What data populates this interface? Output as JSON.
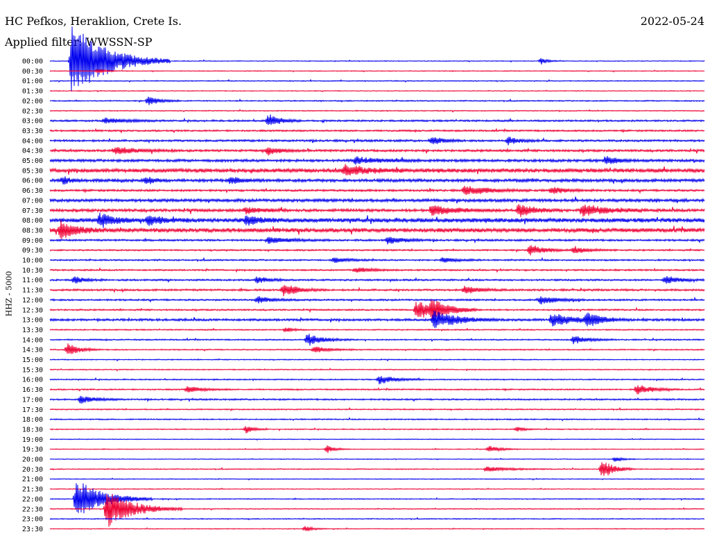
{
  "header": {
    "station": "HC Pefkos, Heraklion, Crete Is.",
    "filter": "Applied filter: WWSSN-SP",
    "date": "2022-05-24",
    "channel": "HHZ - 5000"
  },
  "chart_data": {
    "type": "helicorder",
    "title": "HC Pefkos, Heraklion, Crete Is.",
    "subtitle": "Applied filter: WWSSN-SP",
    "date": "2022-05-24",
    "ylabel": "HHZ - 5000",
    "trace_colors": [
      "#0000ee",
      "#ee0033"
    ],
    "row_labels": [
      "00:00",
      "00:30",
      "01:00",
      "01:30",
      "02:00",
      "02:30",
      "03:00",
      "03:30",
      "04:00",
      "04:30",
      "05:00",
      "05:30",
      "06:00",
      "06:30",
      "07:00",
      "07:30",
      "08:00",
      "08:30",
      "09:00",
      "09:30",
      "10:00",
      "10:30",
      "11:00",
      "11:30",
      "12:00",
      "12:30",
      "13:00",
      "13:30",
      "14:00",
      "14:30",
      "15:00",
      "15:30",
      "16:00",
      "16:30",
      "17:00",
      "17:30",
      "18:00",
      "18:30",
      "19:00",
      "19:30",
      "20:00",
      "20:30",
      "21:00",
      "21:30",
      "22:00",
      "22:30",
      "23:00",
      "23:30"
    ],
    "row_noise": [
      0.4,
      0.4,
      0.5,
      0.4,
      0.6,
      0.5,
      0.9,
      0.9,
      1.1,
      1.2,
      1.4,
      2.0,
      1.6,
      1.1,
      1.6,
      1.5,
      2.2,
      2.2,
      1.0,
      0.8,
      0.8,
      0.8,
      0.9,
      1.0,
      0.9,
      0.8,
      1.2,
      0.6,
      0.7,
      0.6,
      0.5,
      0.5,
      0.6,
      0.7,
      0.8,
      0.6,
      0.6,
      0.5,
      0.4,
      0.4,
      0.4,
      0.5,
      0.4,
      0.4,
      0.5,
      0.5,
      0.5,
      0.4
    ],
    "events": [
      {
        "row": 0,
        "minute": 22.5,
        "amp": 4,
        "dur": 1.0
      },
      {
        "row": 0,
        "minute": 1,
        "amp": 55,
        "dur": 4.5
      },
      {
        "row": 1,
        "minute": 2.2,
        "amp": 3,
        "dur": 1
      },
      {
        "row": 4,
        "minute": 4.5,
        "amp": 7,
        "dur": 1.5
      },
      {
        "row": 6,
        "minute": 2.5,
        "amp": 4,
        "dur": 3
      },
      {
        "row": 6,
        "minute": 10,
        "amp": 10,
        "dur": 1.5
      },
      {
        "row": 8,
        "minute": 17.5,
        "amp": 6,
        "dur": 1.5
      },
      {
        "row": 8,
        "minute": 21,
        "amp": 6,
        "dur": 1.5
      },
      {
        "row": 9,
        "minute": 3,
        "amp": 5,
        "dur": 3
      },
      {
        "row": 9,
        "minute": 10,
        "amp": 6,
        "dur": 1.5
      },
      {
        "row": 10,
        "minute": 14,
        "amp": 5,
        "dur": 3
      },
      {
        "row": 10,
        "minute": 25.5,
        "amp": 6,
        "dur": 1.5
      },
      {
        "row": 11,
        "minute": 13.5,
        "amp": 8,
        "dur": 3
      },
      {
        "row": 12,
        "minute": 0.6,
        "amp": 6,
        "dur": 1
      },
      {
        "row": 12,
        "minute": 4.4,
        "amp": 6,
        "dur": 1
      },
      {
        "row": 12,
        "minute": 8.3,
        "amp": 6,
        "dur": 1
      },
      {
        "row": 13,
        "minute": 19,
        "amp": 8,
        "dur": 3
      },
      {
        "row": 13,
        "minute": 23,
        "amp": 5,
        "dur": 2
      },
      {
        "row": 15,
        "minute": 9,
        "amp": 5,
        "dur": 2
      },
      {
        "row": 15,
        "minute": 17.5,
        "amp": 8,
        "dur": 3
      },
      {
        "row": 15,
        "minute": 21.5,
        "amp": 9,
        "dur": 2
      },
      {
        "row": 15,
        "minute": 24.4,
        "amp": 9,
        "dur": 3
      },
      {
        "row": 16,
        "minute": 2.3,
        "amp": 10,
        "dur": 2
      },
      {
        "row": 16,
        "minute": 4.5,
        "amp": 7,
        "dur": 2
      },
      {
        "row": 16,
        "minute": 9,
        "amp": 6,
        "dur": 2
      },
      {
        "row": 17,
        "minute": 0.5,
        "amp": 14,
        "dur": 2
      },
      {
        "row": 18,
        "minute": 10,
        "amp": 5,
        "dur": 3
      },
      {
        "row": 18,
        "minute": 15.5,
        "amp": 6,
        "dur": 2
      },
      {
        "row": 19,
        "minute": 22,
        "amp": 8,
        "dur": 2
      },
      {
        "row": 19,
        "minute": 24,
        "amp": 5,
        "dur": 2
      },
      {
        "row": 20,
        "minute": 13,
        "amp": 4,
        "dur": 2
      },
      {
        "row": 20,
        "minute": 18,
        "amp": 4,
        "dur": 2
      },
      {
        "row": 21,
        "minute": 14,
        "amp": 4,
        "dur": 2
      },
      {
        "row": 22,
        "minute": 1.1,
        "amp": 5,
        "dur": 1.5
      },
      {
        "row": 22,
        "minute": 9.5,
        "amp": 5,
        "dur": 1.5
      },
      {
        "row": 22,
        "minute": 28.2,
        "amp": 6,
        "dur": 2
      },
      {
        "row": 23,
        "minute": 10.7,
        "amp": 9,
        "dur": 2
      },
      {
        "row": 23,
        "minute": 19,
        "amp": 6,
        "dur": 2
      },
      {
        "row": 24,
        "minute": 9.5,
        "amp": 5,
        "dur": 2
      },
      {
        "row": 24,
        "minute": 22.5,
        "amp": 7,
        "dur": 2
      },
      {
        "row": 25,
        "minute": 17.5,
        "amp": 12,
        "dur": 2
      },
      {
        "row": 25,
        "minute": 16.8,
        "amp": 14,
        "dur": 3
      },
      {
        "row": 26,
        "minute": 17.6,
        "amp": 14,
        "dur": 3
      },
      {
        "row": 26,
        "minute": 23,
        "amp": 10,
        "dur": 3
      },
      {
        "row": 26,
        "minute": 24.6,
        "amp": 10,
        "dur": 2
      },
      {
        "row": 27,
        "minute": 10.8,
        "amp": 4,
        "dur": 1
      },
      {
        "row": 28,
        "minute": 11.8,
        "amp": 9,
        "dur": 2
      },
      {
        "row": 28,
        "minute": 24,
        "amp": 6,
        "dur": 2
      },
      {
        "row": 29,
        "minute": 0.8,
        "amp": 10,
        "dur": 1.5
      },
      {
        "row": 29,
        "minute": 12.1,
        "amp": 5,
        "dur": 2
      },
      {
        "row": 32,
        "minute": 15.1,
        "amp": 7,
        "dur": 2
      },
      {
        "row": 33,
        "minute": 6.3,
        "amp": 5,
        "dur": 2
      },
      {
        "row": 33,
        "minute": 26.9,
        "amp": 8,
        "dur": 2
      },
      {
        "row": 34,
        "minute": 1.4,
        "amp": 6,
        "dur": 2
      },
      {
        "row": 37,
        "minute": 9,
        "amp": 6,
        "dur": 1
      },
      {
        "row": 37,
        "minute": 21.4,
        "amp": 4,
        "dur": 1
      },
      {
        "row": 39,
        "minute": 12.7,
        "amp": 6,
        "dur": 1
      },
      {
        "row": 39,
        "minute": 20.1,
        "amp": 5,
        "dur": 1.5
      },
      {
        "row": 40,
        "minute": 25.9,
        "amp": 4,
        "dur": 1
      },
      {
        "row": 41,
        "minute": 20,
        "amp": 4,
        "dur": 3
      },
      {
        "row": 41,
        "minute": 25.3,
        "amp": 15,
        "dur": 1.5
      },
      {
        "row": 44,
        "minute": 1.2,
        "amp": 30,
        "dur": 3.5
      },
      {
        "row": 45,
        "minute": 2.6,
        "amp": 28,
        "dur": 3.5
      },
      {
        "row": 47,
        "minute": 11.7,
        "amp": 4,
        "dur": 1
      }
    ]
  }
}
